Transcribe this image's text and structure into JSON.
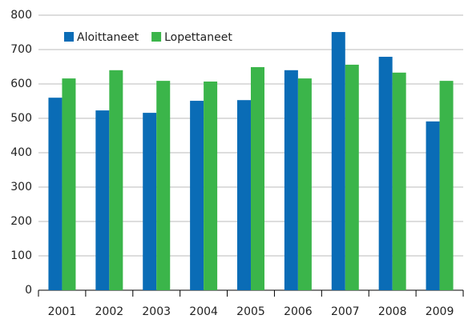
{
  "chart_data": {
    "type": "bar",
    "categories": [
      "2001",
      "2002",
      "2003",
      "2004",
      "2005",
      "2006",
      "2007",
      "2008",
      "2009"
    ],
    "series": [
      {
        "name": "Aloittaneet",
        "color": "#0a6cb6",
        "values": [
          560,
          523,
          516,
          551,
          553,
          640,
          751,
          679,
          491
        ]
      },
      {
        "name": "Lopettaneet",
        "color": "#3bb54a",
        "values": [
          616,
          640,
          609,
          607,
          649,
          616,
          656,
          633,
          609
        ]
      }
    ],
    "ylim": [
      0,
      800
    ],
    "yticks": [
      0,
      100,
      200,
      300,
      400,
      500,
      600,
      700,
      800
    ],
    "grid": true,
    "legend": "top-left"
  }
}
